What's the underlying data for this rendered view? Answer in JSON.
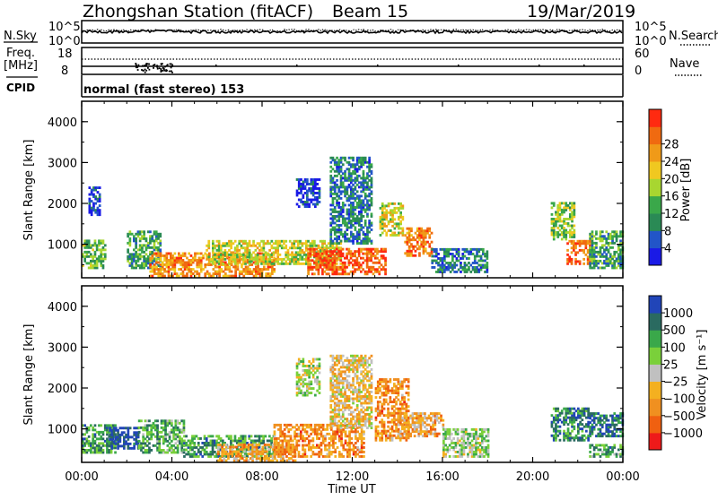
{
  "header": {
    "title": "Zhongshan Station (fitACF)",
    "beam": "Beam 15",
    "date": "19/Mar/2019"
  },
  "sky_panel": {
    "left_label": "N.Sky",
    "right_label": "N.Search",
    "left_ticks": [
      "10^5",
      "10^0"
    ],
    "right_ticks": [
      "10^5",
      "10^0"
    ]
  },
  "freq_panel": {
    "left_label_line1": "Freq.",
    "left_label_line2": "[MHz]",
    "right_label": "Nave",
    "left_ticks": [
      "18",
      "8"
    ],
    "right_ticks": [
      "60",
      "0"
    ]
  },
  "cpid": {
    "label": "CPID",
    "text": "normal (fast stereo) 153"
  },
  "colors": {
    "power": [
      "#1a1ae6",
      "#2255c8",
      "#2a8a55",
      "#3aa84a",
      "#a8d630",
      "#f0c820",
      "#f09a18",
      "#f06a10",
      "#ff2a10"
    ],
    "velocity": [
      "#2145b8",
      "#2a6a60",
      "#3aa84a",
      "#7ad03a",
      "#c0c0c0",
      "#f4b020",
      "#f09020",
      "#f06010",
      "#ee1a1a"
    ]
  },
  "chart_data": [
    {
      "type": "heatmap",
      "name": "power",
      "ylabel": "Slant Range [km]",
      "xlabel": "",
      "ylim": [
        180,
        4500
      ],
      "xlim": [
        0,
        24
      ],
      "yticks": [
        "1000",
        "2000",
        "3000",
        "4000"
      ],
      "colorbar_label": "Power [dB]",
      "colorbar_ticks": [
        "4",
        "8",
        "12",
        "16",
        "20",
        "24",
        "28"
      ],
      "x_ticks": [
        "00:00",
        "04:00",
        "08:00",
        "12:00",
        "16:00",
        "20:00",
        "00:00"
      ],
      "patches": [
        {
          "t0": 0.0,
          "t1": 1.0,
          "r0": 400,
          "r1": 1100,
          "p": 0.4
        },
        {
          "t0": 0.3,
          "t1": 0.8,
          "r0": 1700,
          "r1": 2400,
          "p": 0.12
        },
        {
          "t0": 2.0,
          "t1": 3.5,
          "r0": 400,
          "r1": 1300,
          "p": 0.35
        },
        {
          "t0": 3.0,
          "t1": 8.5,
          "r0": 200,
          "r1": 800,
          "p": 0.75
        },
        {
          "t0": 5.5,
          "t1": 11.5,
          "r0": 500,
          "r1": 1100,
          "p": 0.55
        },
        {
          "t0": 9.5,
          "t1": 10.5,
          "r0": 1900,
          "r1": 2600,
          "p": 0.1
        },
        {
          "t0": 10.0,
          "t1": 13.5,
          "r0": 250,
          "r1": 900,
          "p": 0.85
        },
        {
          "t0": 11.0,
          "t1": 12.8,
          "r0": 1000,
          "r1": 3100,
          "p": 0.25
        },
        {
          "t0": 13.2,
          "t1": 14.2,
          "r0": 1200,
          "r1": 2000,
          "p": 0.55
        },
        {
          "t0": 14.3,
          "t1": 15.5,
          "r0": 700,
          "r1": 1400,
          "p": 0.8
        },
        {
          "t0": 15.5,
          "t1": 18.0,
          "r0": 300,
          "r1": 900,
          "p": 0.25
        },
        {
          "t0": 20.8,
          "t1": 21.8,
          "r0": 1100,
          "r1": 2000,
          "p": 0.45
        },
        {
          "t0": 21.5,
          "t1": 22.5,
          "r0": 500,
          "r1": 1100,
          "p": 0.85
        },
        {
          "t0": 22.5,
          "t1": 24.0,
          "r0": 400,
          "r1": 1300,
          "p": 0.35
        }
      ]
    },
    {
      "type": "heatmap",
      "name": "velocity",
      "ylabel": "Slant Range [km]",
      "xlabel": "Time UT",
      "ylim": [
        180,
        4500
      ],
      "xlim": [
        0,
        24
      ],
      "yticks": [
        "1000",
        "2000",
        "3000",
        "4000"
      ],
      "colorbar_label": "Velocity [m s⁻¹]",
      "colorbar_ticks": [
        "1000",
        "500",
        "100",
        "25",
        "−25",
        "−100",
        "−500",
        "−1000"
      ],
      "x_ticks": [
        "00:00",
        "04:00",
        "08:00",
        "12:00",
        "16:00",
        "20:00",
        "00:00"
      ],
      "patches": [
        {
          "t0": 0.0,
          "t1": 1.5,
          "r0": 400,
          "r1": 1100,
          "v": 0.25
        },
        {
          "t0": 1.2,
          "t1": 2.5,
          "r0": 500,
          "r1": 1000,
          "v": 0.05
        },
        {
          "t0": 2.5,
          "t1": 4.5,
          "r0": 400,
          "r1": 1200,
          "v": 0.3
        },
        {
          "t0": 4.5,
          "t1": 8.5,
          "r0": 300,
          "r1": 800,
          "v": 0.25
        },
        {
          "t0": 6.0,
          "t1": 9.5,
          "r0": 200,
          "r1": 600,
          "v": 0.65
        },
        {
          "t0": 8.5,
          "t1": 12.5,
          "r0": 300,
          "r1": 1100,
          "v": 0.72
        },
        {
          "t0": 9.5,
          "t1": 10.5,
          "r0": 1800,
          "r1": 2700,
          "v": 0.45
        },
        {
          "t0": 11.0,
          "t1": 12.8,
          "r0": 1000,
          "r1": 2800,
          "v": 0.58
        },
        {
          "t0": 13.0,
          "t1": 14.5,
          "r0": 700,
          "r1": 2200,
          "v": 0.72
        },
        {
          "t0": 14.0,
          "t1": 16.0,
          "r0": 800,
          "r1": 1400,
          "v": 0.65
        },
        {
          "t0": 16.0,
          "t1": 18.0,
          "r0": 300,
          "r1": 1000,
          "v": 0.4
        },
        {
          "t0": 20.8,
          "t1": 22.5,
          "r0": 700,
          "r1": 1500,
          "v": 0.2
        },
        {
          "t0": 22.5,
          "t1": 24.0,
          "r0": 800,
          "r1": 1400,
          "v": 0.15
        },
        {
          "t0": 22.5,
          "t1": 24.0,
          "r0": 300,
          "r1": 600,
          "v": 0.28
        }
      ]
    }
  ]
}
